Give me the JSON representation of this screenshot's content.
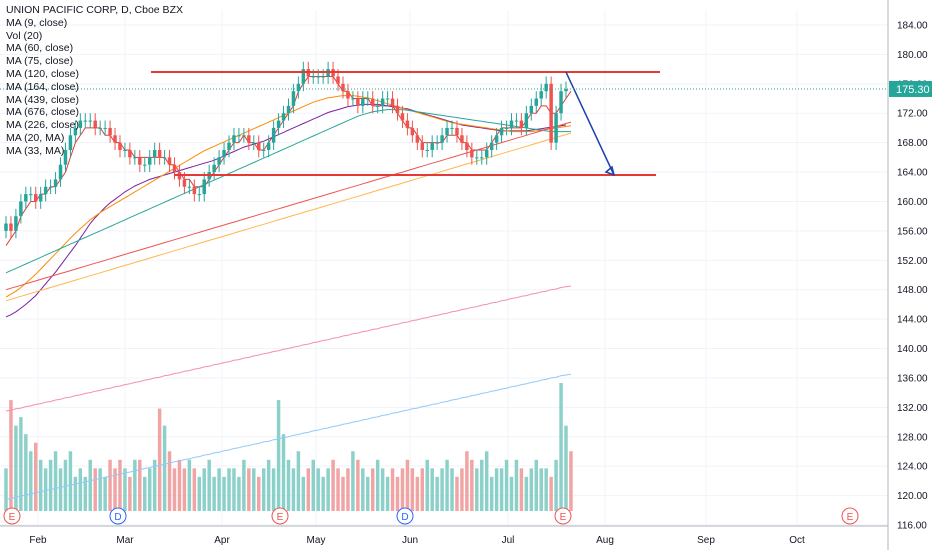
{
  "chart_data": {
    "type": "candlestick",
    "title": "UNION PACIFIC CORP, D, Cboe BZX",
    "symbol": "UNION PACIFIC CORP",
    "interval": "D",
    "exchange": "Cboe BZX",
    "indicators": [
      "MA (9, close)",
      "Vol (20)",
      "MA (60, close)",
      "MA (75, close)",
      "MA (120, close)",
      "MA (164, close)",
      "MA (439, close)",
      "MA (676, close)",
      "MA (226, close)",
      "MA (20, MA)",
      "MA (33, MA)"
    ],
    "last_price": "175.30",
    "y_ticks": [
      "184.00",
      "180.00",
      "176.00",
      "172.00",
      "168.00",
      "164.00",
      "160.00",
      "156.00",
      "152.00",
      "148.00",
      "144.00",
      "140.00",
      "136.00",
      "132.00",
      "128.00",
      "124.00",
      "120.00",
      "116.00"
    ],
    "ylim": [
      114.4,
      186.4
    ],
    "x_ticks": [
      "Feb",
      "Mar",
      "Apr",
      "May",
      "Jun",
      "Jul",
      "Aug",
      "Sep",
      "Oct"
    ],
    "event_markers": [
      "E",
      "D",
      "E",
      "D",
      "E",
      "E"
    ],
    "resistance": 177.6,
    "support": 163.6,
    "projection": {
      "from": 177.6,
      "to": 163.6
    },
    "price_series": [
      157,
      156,
      158,
      160,
      161,
      161,
      160,
      161,
      162,
      162,
      163,
      165,
      167,
      169,
      170,
      171,
      171,
      171,
      170,
      170,
      170,
      169,
      168,
      167,
      167,
      166,
      166,
      165,
      165,
      166,
      167,
      166,
      166,
      165,
      164,
      163,
      162,
      162,
      161,
      161,
      163,
      164,
      165,
      166,
      167,
      168,
      169,
      169,
      169,
      168,
      168,
      167,
      167,
      168,
      170,
      171,
      172,
      173,
      175,
      176,
      178,
      177,
      177,
      177,
      177,
      178,
      177,
      176,
      175,
      174,
      174,
      173,
      174,
      174,
      173,
      173,
      174,
      174,
      173,
      172,
      171,
      170,
      169,
      168,
      167,
      167,
      168,
      168,
      169,
      170,
      170,
      169,
      168,
      167,
      166,
      166,
      166,
      167,
      168,
      169,
      170,
      170,
      171,
      171,
      170,
      172,
      173,
      174,
      175,
      176,
      168,
      172,
      175,
      175.3
    ],
    "volume": [
      5,
      13,
      10,
      11,
      9,
      7,
      8,
      6,
      5,
      6,
      7,
      5,
      6,
      7,
      4,
      5,
      4,
      6,
      5,
      5,
      4,
      6,
      5,
      6,
      5,
      4,
      6,
      6,
      4,
      5,
      6,
      12,
      10,
      7,
      5,
      6,
      5,
      6,
      5,
      4,
      5,
      6,
      4,
      5,
      4,
      5,
      5,
      4,
      6,
      5,
      5,
      4,
      5,
      6,
      5,
      13,
      9,
      6,
      5,
      7,
      4,
      5,
      6,
      5,
      4,
      5,
      6,
      5,
      4,
      5,
      7,
      6,
      5,
      4,
      5,
      6,
      5,
      4,
      5,
      4,
      5,
      6,
      5,
      4,
      5,
      6,
      5,
      4,
      5,
      6,
      5,
      4,
      5,
      7,
      6,
      5,
      6,
      7,
      4,
      5,
      5,
      6,
      4,
      6,
      5,
      4,
      5,
      6,
      5,
      5,
      4,
      6,
      15,
      10,
      7
    ],
    "moving_averages": [
      {
        "name": "MA (9, close)",
        "color": "#e53935",
        "values": [
          154,
          155,
          156,
          158,
          159,
          160,
          160,
          161,
          161,
          162,
          162,
          163,
          164,
          166,
          168,
          169,
          170,
          170,
          170,
          170,
          169,
          169,
          168,
          168,
          167,
          167,
          166,
          166,
          166,
          166,
          166,
          166,
          166,
          165,
          165,
          164,
          163,
          163,
          162,
          162,
          162,
          163,
          164,
          165,
          166,
          167,
          168,
          168,
          169,
          168,
          168,
          167,
          167,
          168,
          169,
          170,
          171,
          172,
          173,
          175,
          176,
          177,
          177,
          177,
          177,
          177,
          177,
          176,
          175,
          175,
          174,
          174,
          174,
          174,
          173,
          173,
          173,
          173,
          173,
          172,
          171,
          170,
          170,
          169,
          168,
          168,
          168,
          168,
          168,
          169,
          169,
          169,
          168,
          168,
          167,
          167,
          167,
          167,
          168,
          169,
          170,
          170,
          170,
          170,
          170,
          171,
          172,
          172,
          173,
          173,
          172,
          172,
          173,
          174,
          175
        ]
      },
      {
        "name": "MA (60, close)",
        "color": "#7b1fa2",
        "values": [
          144.3,
          144.6,
          145,
          145.5,
          146,
          146.6,
          147.2,
          148,
          148.8,
          149.6,
          150.4,
          151.3,
          152.2,
          153.1,
          154,
          155,
          156,
          157,
          157.8,
          158.5,
          159.2,
          159.8,
          160.3,
          160.8,
          161.3,
          161.7,
          162.1,
          162.4,
          162.7,
          163,
          163.2,
          163.4,
          163.6,
          163.8,
          164,
          164.2,
          164.4,
          164.6,
          164.8,
          165,
          165.2,
          165.4,
          165.6,
          165.9,
          166.2,
          166.5,
          166.8,
          167.1,
          167.4,
          167.6,
          167.8,
          168,
          168.2,
          168.5,
          168.8,
          169.1,
          169.4,
          169.7,
          170,
          170.3,
          170.6,
          170.9,
          171.2,
          171.5,
          171.8,
          172.1,
          172.3,
          172.5,
          172.7,
          172.9,
          173,
          173.1,
          173.2,
          173.2,
          173.2,
          173.2,
          173.1,
          173,
          172.9,
          172.8,
          172.7,
          172.6,
          172.4,
          172.2,
          172,
          171.8,
          171.6,
          171.4,
          171.2,
          171,
          170.8,
          170.6,
          170.4,
          170.3,
          170.2,
          170.1,
          170,
          169.9,
          169.8,
          169.7,
          169.6,
          169.6,
          169.6,
          169.6,
          169.6,
          169.6,
          169.7,
          169.8,
          169.9,
          170,
          170.1,
          170.2,
          170.3,
          170.4
        ]
      },
      {
        "name": "MA (75, close)",
        "color": "#fb8c00",
        "values": [
          147,
          147.4,
          147.8,
          148.3,
          148.9,
          149.5,
          150.1,
          150.8,
          151.5,
          152.2,
          152.9,
          153.6,
          154.3,
          155,
          155.7,
          156.3,
          156.9,
          157.5,
          158,
          158.5,
          158.9,
          159.3,
          159.7,
          160.1,
          160.5,
          160.9,
          161.3,
          161.7,
          162.1,
          162.5,
          162.9,
          163.3,
          163.7,
          164.1,
          164.5,
          164.9,
          165.3,
          165.7,
          166.1,
          166.5,
          166.9,
          167.2,
          167.5,
          167.8,
          168.1,
          168.4,
          168.7,
          169,
          169.3,
          169.6,
          169.9,
          170.2,
          170.5,
          170.8,
          171.1,
          171.4,
          171.7,
          172,
          172.3,
          172.6,
          172.9,
          173.2,
          173.5,
          173.7,
          173.9,
          174.1,
          174.2,
          174.3,
          174.4,
          174.4,
          174.4,
          174.3,
          174.2,
          174.1,
          173.9,
          173.7,
          173.5,
          173.3,
          173.1,
          172.9,
          172.7,
          172.5,
          172.3,
          172.1,
          171.9,
          171.7,
          171.5,
          171.3,
          171.1,
          170.9,
          170.7,
          170.6,
          170.5,
          170.4,
          170.3,
          170.2,
          170.1,
          170,
          169.9,
          169.8,
          169.7,
          169.6,
          169.5,
          169.5,
          169.5,
          169.5,
          169.5,
          169.6,
          169.7,
          169.8,
          169.9,
          170,
          170.1,
          170.2,
          170.3
        ]
      },
      {
        "name": "MA (120, close)",
        "color": "#26a69a",
        "values": [
          150.3,
          150.6,
          150.9,
          151.2,
          151.5,
          151.8,
          152.1,
          152.4,
          152.7,
          153,
          153.3,
          153.6,
          153.9,
          154.2,
          154.5,
          154.8,
          155.1,
          155.4,
          155.7,
          156,
          156.3,
          156.6,
          156.9,
          157.2,
          157.5,
          157.8,
          158.1,
          158.4,
          158.7,
          159,
          159.3,
          159.6,
          159.9,
          160.2,
          160.5,
          160.8,
          161.1,
          161.4,
          161.7,
          162,
          162.3,
          162.6,
          162.9,
          163.2,
          163.5,
          163.8,
          164.1,
          164.4,
          164.7,
          165,
          165.3,
          165.6,
          165.9,
          166.2,
          166.5,
          166.8,
          167.1,
          167.4,
          167.7,
          168,
          168.3,
          168.6,
          168.9,
          169.2,
          169.5,
          169.8,
          170.1,
          170.4,
          170.7,
          171,
          171.3,
          171.6,
          171.8,
          172,
          172.2,
          172.3,
          172.4,
          172.5,
          172.5,
          172.5,
          172.5,
          172.4,
          172.3,
          172.2,
          172.1,
          172,
          171.9,
          171.8,
          171.7,
          171.6,
          171.5,
          171.4,
          171.3,
          171.2,
          171.1,
          171,
          170.9,
          170.8,
          170.7,
          170.6,
          170.5,
          170.4,
          170.3,
          170.2,
          170.1,
          170,
          169.9,
          169.8,
          169.7,
          169.6,
          169.5,
          169.5,
          169.5,
          169.5,
          169.5
        ]
      },
      {
        "name": "MA (164, close)",
        "color": "#ef5350",
        "values": [
          148,
          148.2,
          148.4,
          148.6,
          148.8,
          149,
          149.2,
          149.4,
          149.6,
          149.8,
          150,
          150.2,
          150.4,
          150.6,
          150.8,
          151,
          151.2,
          151.4,
          151.6,
          151.8,
          152,
          152.2,
          152.4,
          152.6,
          152.8,
          153,
          153.2,
          153.4,
          153.6,
          153.8,
          154,
          154.2,
          154.4,
          154.6,
          154.8,
          155,
          155.2,
          155.4,
          155.6,
          155.8,
          156,
          156.2,
          156.4,
          156.6,
          156.8,
          157,
          157.2,
          157.4,
          157.6,
          157.8,
          158,
          158.2,
          158.4,
          158.6,
          158.8,
          159,
          159.2,
          159.4,
          159.6,
          159.8,
          160,
          160.2,
          160.4,
          160.6,
          160.8,
          161,
          161.2,
          161.4,
          161.6,
          161.8,
          162,
          162.2,
          162.4,
          162.6,
          162.8,
          163,
          163.2,
          163.4,
          163.6,
          163.8,
          164,
          164.2,
          164.4,
          164.6,
          164.8,
          165,
          165.2,
          165.4,
          165.6,
          165.8,
          166,
          166.2,
          166.4,
          166.6,
          166.8,
          167,
          167.2,
          167.4,
          167.6,
          167.8,
          168,
          168.2,
          168.4,
          168.6,
          168.8,
          169,
          169.2,
          169.4,
          169.6,
          169.8,
          170,
          170.2,
          170.4,
          170.6,
          170.8
        ]
      },
      {
        "name": "MA (226, close)",
        "color": "#ffb74d",
        "values": [
          146.5,
          146.7,
          146.9,
          147.1,
          147.3,
          147.5,
          147.7,
          147.9,
          148.1,
          148.3,
          148.5,
          148.7,
          148.9,
          149.1,
          149.3,
          149.5,
          149.7,
          149.9,
          150.1,
          150.3,
          150.5,
          150.7,
          150.9,
          151.1,
          151.3,
          151.5,
          151.7,
          151.9,
          152.1,
          152.3,
          152.5,
          152.7,
          152.9,
          153.1,
          153.3,
          153.5,
          153.7,
          153.9,
          154.1,
          154.3,
          154.5,
          154.7,
          154.9,
          155.1,
          155.3,
          155.5,
          155.7,
          155.9,
          156.1,
          156.3,
          156.5,
          156.7,
          156.9,
          157.1,
          157.3,
          157.5,
          157.7,
          157.9,
          158.1,
          158.3,
          158.5,
          158.7,
          158.9,
          159.1,
          159.3,
          159.5,
          159.7,
          159.9,
          160.1,
          160.3,
          160.5,
          160.7,
          160.9,
          161.1,
          161.3,
          161.5,
          161.7,
          161.9,
          162.1,
          162.3,
          162.5,
          162.7,
          162.9,
          163.1,
          163.3,
          163.5,
          163.7,
          163.9,
          164.1,
          164.3,
          164.5,
          164.7,
          164.9,
          165.1,
          165.3,
          165.5,
          165.7,
          165.9,
          166.1,
          166.3,
          166.5,
          166.7,
          166.9,
          167.1,
          167.3,
          167.5,
          167.7,
          167.9,
          168.1,
          168.3,
          168.5,
          168.7,
          168.9,
          169.1,
          169.3
        ]
      },
      {
        "name": "MA (439, close)",
        "color": "#f48fb1",
        "values": [
          131.5,
          131.6,
          131.8,
          131.9,
          132.1,
          132.2,
          132.4,
          132.5,
          132.7,
          132.8,
          133,
          133.1,
          133.3,
          133.4,
          133.6,
          133.7,
          133.9,
          134,
          134.2,
          134.3,
          134.5,
          134.6,
          134.8,
          134.9,
          135.1,
          135.2,
          135.4,
          135.5,
          135.7,
          135.8,
          136,
          136.1,
          136.3,
          136.4,
          136.6,
          136.7,
          136.9,
          137,
          137.2,
          137.3,
          137.5,
          137.6,
          137.8,
          137.9,
          138.1,
          138.2,
          138.4,
          138.5,
          138.7,
          138.8,
          139,
          139.1,
          139.3,
          139.4,
          139.6,
          139.7,
          139.9,
          140,
          140.2,
          140.3,
          140.5,
          140.6,
          140.8,
          140.9,
          141.1,
          141.2,
          141.4,
          141.5,
          141.7,
          141.8,
          142,
          142.1,
          142.3,
          142.4,
          142.6,
          142.7,
          142.9,
          143,
          143.2,
          143.3,
          143.5,
          143.6,
          143.8,
          143.9,
          144.1,
          144.2,
          144.4,
          144.5,
          144.7,
          144.8,
          145,
          145.1,
          145.3,
          145.4,
          145.6,
          145.7,
          145.9,
          146,
          146.2,
          146.3,
          146.5,
          146.6,
          146.8,
          146.9,
          147.1,
          147.2,
          147.4,
          147.5,
          147.7,
          147.8,
          148,
          148.1,
          148.3,
          148.4,
          148.5
        ]
      },
      {
        "name": "MA (676, close)",
        "color": "#90caf9",
        "values": [
          119.5,
          119.6,
          119.8,
          119.9,
          120.1,
          120.2,
          120.4,
          120.5,
          120.7,
          120.8,
          121,
          121.1,
          121.3,
          121.4,
          121.6,
          121.7,
          121.9,
          122,
          122.2,
          122.3,
          122.5,
          122.6,
          122.8,
          122.9,
          123.1,
          123.2,
          123.4,
          123.5,
          123.7,
          123.8,
          124,
          124.1,
          124.3,
          124.4,
          124.6,
          124.7,
          124.9,
          125,
          125.2,
          125.3,
          125.5,
          125.6,
          125.8,
          125.9,
          126.1,
          126.2,
          126.4,
          126.5,
          126.7,
          126.8,
          127,
          127.1,
          127.3,
          127.4,
          127.6,
          127.7,
          127.9,
          128,
          128.2,
          128.3,
          128.5,
          128.6,
          128.8,
          128.9,
          129.1,
          129.2,
          129.4,
          129.5,
          129.7,
          129.8,
          130,
          130.1,
          130.3,
          130.4,
          130.6,
          130.7,
          130.9,
          131,
          131.2,
          131.3,
          131.5,
          131.6,
          131.8,
          131.9,
          132.1,
          132.2,
          132.4,
          132.5,
          132.7,
          132.8,
          133,
          133.1,
          133.3,
          133.4,
          133.6,
          133.7,
          133.9,
          134,
          134.2,
          134.3,
          134.5,
          134.6,
          134.8,
          134.9,
          135.1,
          135.2,
          135.4,
          135.5,
          135.7,
          135.8,
          136,
          136.1,
          136.3,
          136.4,
          136.5
        ]
      }
    ]
  }
}
